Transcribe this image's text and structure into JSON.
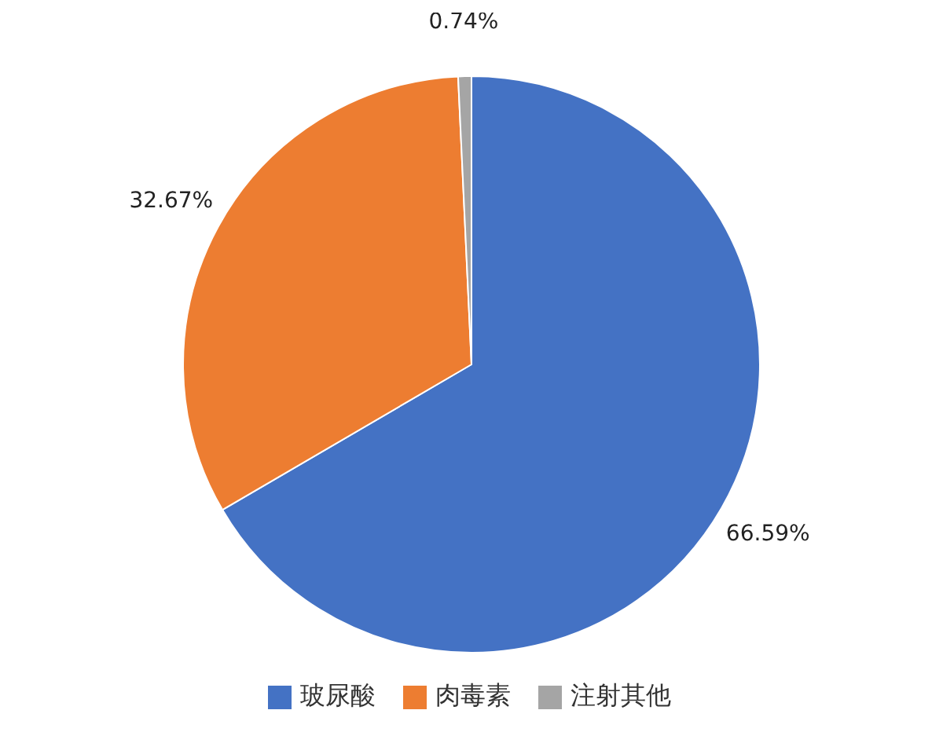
{
  "chart_data": {
    "type": "pie",
    "categories": [
      "玻尿酸",
      "肉毒素",
      "注射其他"
    ],
    "values": [
      66.59,
      32.67,
      0.74
    ],
    "colors": [
      "#4472c4",
      "#ed7d31",
      "#a5a5a5"
    ],
    "value_labels": [
      "66.59%",
      "32.67%",
      "0.74%"
    ],
    "legend": "bottom"
  }
}
